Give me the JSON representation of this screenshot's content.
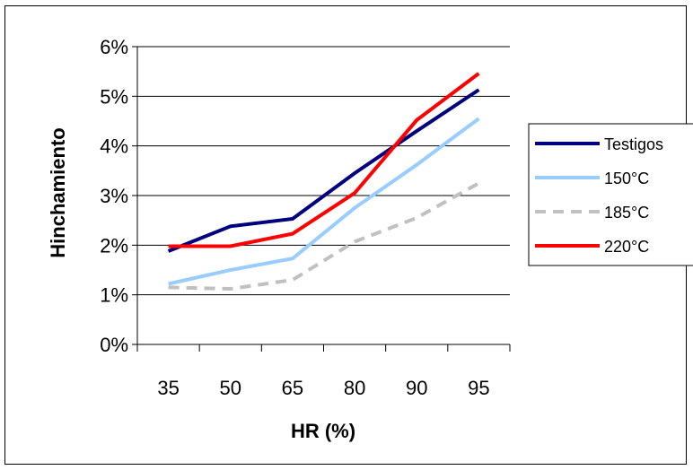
{
  "chart_data": {
    "type": "line",
    "categories": [
      "35",
      "50",
      "65",
      "80",
      "90",
      "95"
    ],
    "xlabel": "HR (%)",
    "ylabel": "Hinchamiento",
    "ylim": [
      0,
      6
    ],
    "yticks": [
      "0%",
      "1%",
      "2%",
      "3%",
      "4%",
      "5%",
      "6%"
    ],
    "grid": true,
    "legend_position": "right",
    "series": [
      {
        "name": "Testigos",
        "color": "#00007f",
        "dash": "solid",
        "values": [
          1.88,
          2.38,
          2.53,
          3.45,
          4.3,
          5.13
        ]
      },
      {
        "name": "150°C",
        "color": "#99ccff",
        "dash": "solid",
        "values": [
          1.22,
          1.5,
          1.73,
          2.75,
          3.62,
          4.55
        ]
      },
      {
        "name": "185°C",
        "color": "#c0c0c0",
        "dash": "dashed",
        "values": [
          1.15,
          1.12,
          1.3,
          2.07,
          2.55,
          3.25
        ]
      },
      {
        "name": "220°C",
        "color": "#ff0000",
        "dash": "solid",
        "values": [
          1.98,
          1.98,
          2.23,
          3.05,
          4.52,
          5.46
        ]
      }
    ]
  }
}
